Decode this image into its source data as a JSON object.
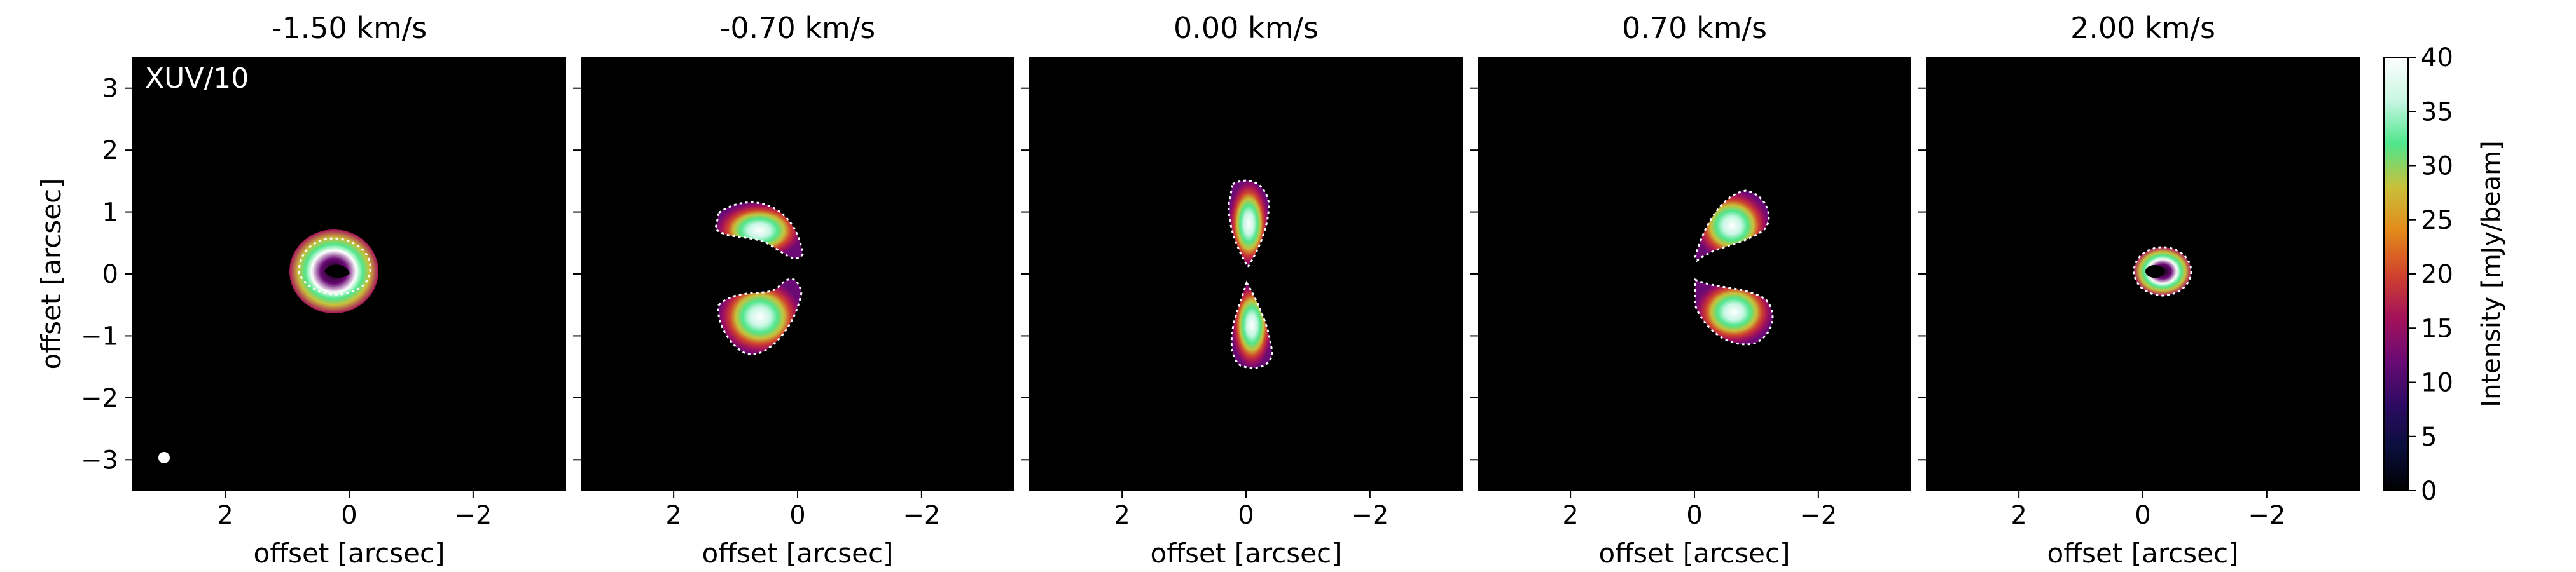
{
  "chart_data": {
    "type": "heatmap",
    "panels": [
      {
        "velocity_label": "-1.50 km/s",
        "corner_label": "XUV/10",
        "beam_marker": true
      },
      {
        "velocity_label": "-0.70 km/s",
        "corner_label": "",
        "beam_marker": false
      },
      {
        "velocity_label": "0.00 km/s",
        "corner_label": "",
        "beam_marker": false
      },
      {
        "velocity_label": "0.70 km/s",
        "corner_label": "",
        "beam_marker": false
      },
      {
        "velocity_label": "2.00 km/s",
        "corner_label": "",
        "beam_marker": false
      }
    ],
    "xlabel": "offset [arcsec]",
    "ylabel": "offset [arcsec]",
    "xlim": [
      3.5,
      -3.5
    ],
    "ylim": [
      -3.5,
      3.5
    ],
    "x_ticks": [
      2,
      0,
      -2
    ],
    "x_tick_labels": [
      "2",
      "0",
      "−2"
    ],
    "y_ticks": [
      3,
      2,
      1,
      0,
      -1,
      -2,
      -3
    ],
    "y_tick_labels": [
      "3",
      "2",
      "1",
      "0",
      "−1",
      "−2",
      "−3"
    ],
    "colorbar": {
      "label": "Intensity [mJy/beam]",
      "range": [
        0,
        40
      ],
      "ticks": [
        0,
        5,
        10,
        15,
        20,
        25,
        30,
        35,
        40
      ],
      "colormap": "gnuplot2-like",
      "stops": [
        "#000000",
        "#0a0f3c",
        "#2d0a63",
        "#6a0a75",
        "#a5125a",
        "#d0442c",
        "#e38a1a",
        "#c9c03a",
        "#4fe68c",
        "#c8f6e4",
        "#ffffff"
      ]
    },
    "contour_color": "#ffffff",
    "background": "#000000"
  }
}
